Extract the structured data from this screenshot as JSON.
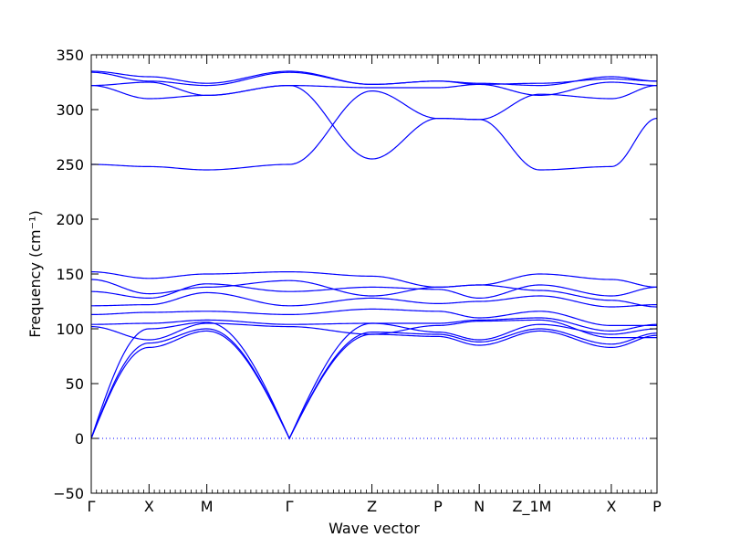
{
  "chart_data": {
    "type": "line",
    "title": "",
    "xlabel": "Wave vector",
    "ylabel": "Frequency (cm⁻¹)",
    "ylim": [
      -50,
      350
    ],
    "yticks": [
      -50,
      0,
      50,
      100,
      150,
      200,
      250,
      300,
      350
    ],
    "grid": false,
    "line_color": "#0000ff",
    "zero_line": {
      "value": 0,
      "style": "dotted",
      "color": "#0000ff"
    },
    "xlim": [
      0,
      10.28
    ],
    "high_symmetry_points": [
      {
        "label": "Γ",
        "x": 0.0
      },
      {
        "label": "X",
        "x": 1.05
      },
      {
        "label": "M",
        "x": 2.1
      },
      {
        "label": "Γ",
        "x": 3.6
      },
      {
        "label": "Z",
        "x": 5.1
      },
      {
        "label": "P",
        "x": 6.3
      },
      {
        "label": "N",
        "x": 7.05
      },
      {
        "label": "Z_1M",
        "x": 8.15
      },
      {
        "label": "X",
        "x": 9.45
      },
      {
        "label": "P",
        "x": 10.28
      }
    ],
    "series": [
      {
        "x": [
          0,
          1.05,
          2.1,
          3.6,
          5.1,
          6.3,
          7.05,
          8.15,
          9.45,
          10.28
        ],
        "values": [
          0,
          83,
          98,
          0,
          95,
          93,
          85,
          98,
          83,
          94
        ]
      },
      {
        "x": [
          0,
          1.05,
          2.1,
          3.6,
          5.1,
          6.3,
          7.05,
          8.15,
          9.45,
          10.28
        ],
        "values": [
          0,
          87,
          100,
          0,
          97,
          95,
          88,
          100,
          86,
          96
        ]
      },
      {
        "x": [
          0,
          1.05,
          2.1,
          3.6,
          5.1,
          6.3,
          7.05,
          8.15,
          9.45,
          10.28
        ],
        "values": [
          0,
          100,
          106,
          0,
          105,
          97,
          90,
          104,
          95,
          100
        ]
      },
      {
        "x": [
          0,
          1.05,
          2.1,
          3.6,
          5.1,
          6.3,
          7.05,
          8.15,
          9.45,
          10.28
        ],
        "values": [
          102,
          90,
          105,
          102,
          95,
          103,
          107,
          108,
          92,
          92
        ]
      },
      {
        "x": [
          0,
          1.05,
          2.1,
          3.6,
          5.1,
          6.3,
          7.05,
          8.15,
          9.45,
          10.28
        ],
        "values": [
          104,
          105,
          108,
          104,
          105,
          105,
          108,
          110,
          98,
          104
        ]
      },
      {
        "x": [
          0,
          1.05,
          2.1,
          3.6,
          5.1,
          6.3,
          7.05,
          8.15,
          9.45,
          10.28
        ],
        "values": [
          113,
          115,
          116,
          113,
          118,
          116,
          110,
          116,
          103,
          103
        ]
      },
      {
        "x": [
          0,
          1.05,
          2.1,
          3.6,
          5.1,
          6.3,
          7.05,
          8.15,
          9.45,
          10.28
        ],
        "values": [
          121,
          122,
          133,
          121,
          128,
          123,
          125,
          130,
          120,
          122
        ]
      },
      {
        "x": [
          0,
          1.05,
          2.1,
          3.6,
          5.1,
          6.3,
          7.05,
          8.15,
          9.45,
          10.28
        ],
        "values": [
          134,
          128,
          141,
          134,
          138,
          136,
          128,
          140,
          130,
          138
        ]
      },
      {
        "x": [
          0,
          1.05,
          2.1,
          3.6,
          5.1,
          6.3,
          7.05,
          8.15,
          9.45,
          10.28
        ],
        "values": [
          145,
          132,
          138,
          144,
          130,
          138,
          140,
          135,
          126,
          120
        ]
      },
      {
        "x": [
          0,
          1.05,
          2.1,
          3.6,
          5.1,
          6.3,
          7.05,
          8.15,
          9.45,
          10.28
        ],
        "values": [
          152,
          146,
          150,
          152,
          148,
          138,
          140,
          150,
          145,
          138
        ]
      },
      {
        "x": [
          0,
          1.05,
          2.1,
          3.6,
          5.1,
          6.3,
          7.05,
          8.15,
          9.45,
          10.28
        ],
        "values": [
          250,
          248,
          245,
          250,
          317,
          292,
          291,
          245,
          248,
          292
        ]
      },
      {
        "x": [
          0,
          1.05,
          2.1,
          3.6,
          5.1,
          6.3,
          7.05,
          8.15,
          9.45,
          10.28
        ],
        "values": [
          322,
          310,
          313,
          322,
          255,
          292,
          291,
          314,
          310,
          322
        ]
      },
      {
        "x": [
          0,
          1.05,
          2.1,
          3.6,
          5.1,
          6.3,
          7.05,
          8.15,
          9.45,
          10.28
        ],
        "values": [
          322,
          325,
          313,
          322,
          320,
          320,
          323,
          313,
          325,
          322
        ]
      },
      {
        "x": [
          0,
          1.05,
          2.1,
          3.6,
          5.1,
          6.3,
          7.05,
          8.15,
          9.45,
          10.28
        ],
        "values": [
          334,
          326,
          322,
          334,
          323,
          326,
          323,
          324,
          328,
          326
        ]
      },
      {
        "x": [
          0,
          1.05,
          2.1,
          3.6,
          5.1,
          6.3,
          7.05,
          8.15,
          9.45,
          10.28
        ],
        "values": [
          335,
          330,
          324,
          335,
          323,
          326,
          324,
          322,
          330,
          326
        ]
      }
    ]
  }
}
